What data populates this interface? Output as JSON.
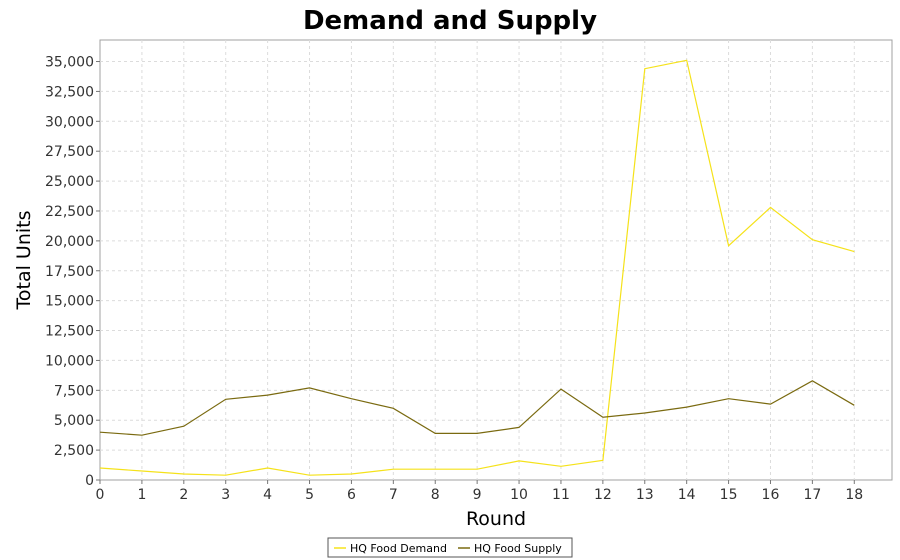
{
  "chart_data": {
    "type": "line",
    "title": "Demand and Supply",
    "xlabel": "Round",
    "ylabel": "Total Units",
    "x": [
      0,
      1,
      2,
      3,
      4,
      5,
      6,
      7,
      8,
      9,
      10,
      11,
      12,
      13,
      14,
      15,
      16,
      17,
      18
    ],
    "xlim": [
      0,
      18.9
    ],
    "ylim": [
      0,
      36800
    ],
    "x_ticks": [
      "0",
      "1",
      "2",
      "3",
      "4",
      "5",
      "6",
      "7",
      "8",
      "9",
      "10",
      "11",
      "12",
      "13",
      "14",
      "15",
      "16",
      "17",
      "18"
    ],
    "y_ticks": [
      0,
      2500,
      5000,
      7500,
      10000,
      12500,
      15000,
      17500,
      20000,
      22500,
      25000,
      27500,
      30000,
      32500,
      35000
    ],
    "y_tick_labels": [
      "0",
      "2,500",
      "5,000",
      "7,500",
      "10,000",
      "12,500",
      "15,000",
      "17,500",
      "20,000",
      "22,500",
      "25,000",
      "27,500",
      "30,000",
      "32,500",
      "35,000"
    ],
    "grid": true,
    "legend_position": "bottom-center",
    "series": [
      {
        "name": "HQ Food Demand",
        "color": "#f5e21a",
        "values": [
          1000,
          750,
          500,
          400,
          1000,
          400,
          500,
          900,
          900,
          900,
          1600,
          1150,
          1650,
          34400,
          35100,
          19600,
          22800,
          20100,
          19100
        ]
      },
      {
        "name": "HQ Food Supply",
        "color": "#7a6a10",
        "values": [
          4000,
          3750,
          4500,
          6750,
          7100,
          7700,
          6800,
          6000,
          3900,
          3900,
          4400,
          7600,
          5250,
          5600,
          6100,
          6800,
          6350,
          8300,
          6250
        ]
      }
    ]
  }
}
